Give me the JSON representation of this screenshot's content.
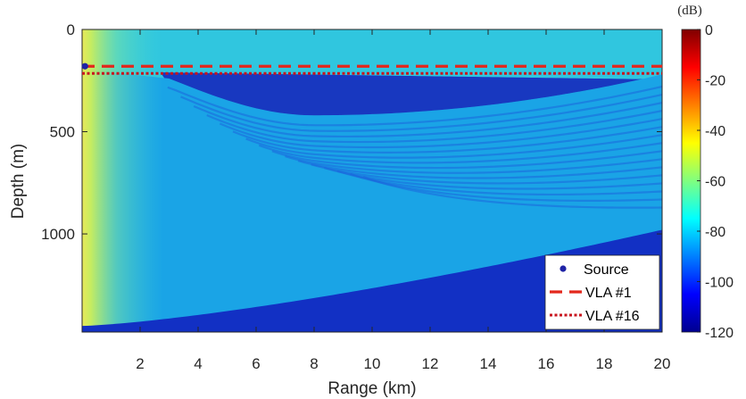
{
  "chart_data": {
    "type": "heatmap",
    "title": "",
    "xlabel": "Range (km)",
    "ylabel": "Depth (m)",
    "xlim": [
      0,
      20
    ],
    "ylim": [
      1480,
      0
    ],
    "xticks": [
      "2",
      "4",
      "6",
      "8",
      "10",
      "12",
      "14",
      "16",
      "18",
      "20"
    ],
    "yticks": [
      "0",
      "500",
      "1000"
    ],
    "colorbar": {
      "unit": "(dB)",
      "range": [
        -120,
        0
      ],
      "ticks": [
        "0",
        "-20",
        "-40",
        "-60",
        "-80",
        "-100",
        "-120"
      ],
      "colormap": "jet"
    },
    "source": {
      "name": "Source",
      "range_km": 0.1,
      "depth_m": 180,
      "color": "#1f23a6"
    },
    "lines": [
      {
        "name": "VLA #1",
        "depth_m": 180,
        "style": "dashed",
        "color": "#e3271c"
      },
      {
        "name": "VLA #16",
        "depth_m": 215,
        "style": "dotted",
        "color": "#c8141e"
      }
    ],
    "legend_position": "bottom-right",
    "seabed_depth_m": {
      "at_0km": 1450,
      "at_20km": 980
    },
    "thermocline_shadow_depth_m": {
      "at_3km": 240,
      "at_8km": 420,
      "at_20km": 220
    },
    "grid": false
  }
}
